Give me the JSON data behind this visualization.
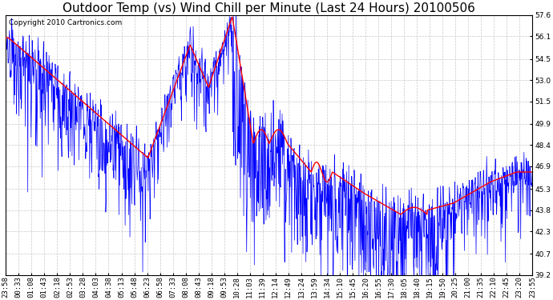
{
  "title": "Outdoor Temp (vs) Wind Chill per Minute (Last 24 Hours) 20100506",
  "copyright_text": "Copyright 2010 Cartronics.com",
  "yticks": [
    39.2,
    40.7,
    42.3,
    43.8,
    45.3,
    46.9,
    48.4,
    49.9,
    51.5,
    53.0,
    54.5,
    56.1,
    57.6
  ],
  "ylim": [
    39.2,
    57.6
  ],
  "background_color": "#ffffff",
  "plot_background": "#ffffff",
  "grid_color": "#c8c8c8",
  "blue_color": "#0000ff",
  "red_color": "#ff0000",
  "title_fontsize": 11,
  "copyright_fontsize": 6.5,
  "tick_fontsize": 6.5,
  "num_minutes": 1440,
  "xtick_labels": [
    "23:58",
    "00:33",
    "01:08",
    "01:43",
    "02:18",
    "02:53",
    "03:28",
    "04:03",
    "04:38",
    "05:13",
    "05:48",
    "06:23",
    "06:58",
    "07:33",
    "08:08",
    "08:43",
    "09:18",
    "09:53",
    "10:28",
    "11:03",
    "11:39",
    "12:14",
    "12:49",
    "13:24",
    "13:59",
    "14:34",
    "15:10",
    "15:45",
    "16:20",
    "16:55",
    "17:30",
    "18:05",
    "18:40",
    "19:15",
    "19:50",
    "20:25",
    "21:00",
    "21:35",
    "22:10",
    "22:45",
    "23:20",
    "23:55"
  ]
}
